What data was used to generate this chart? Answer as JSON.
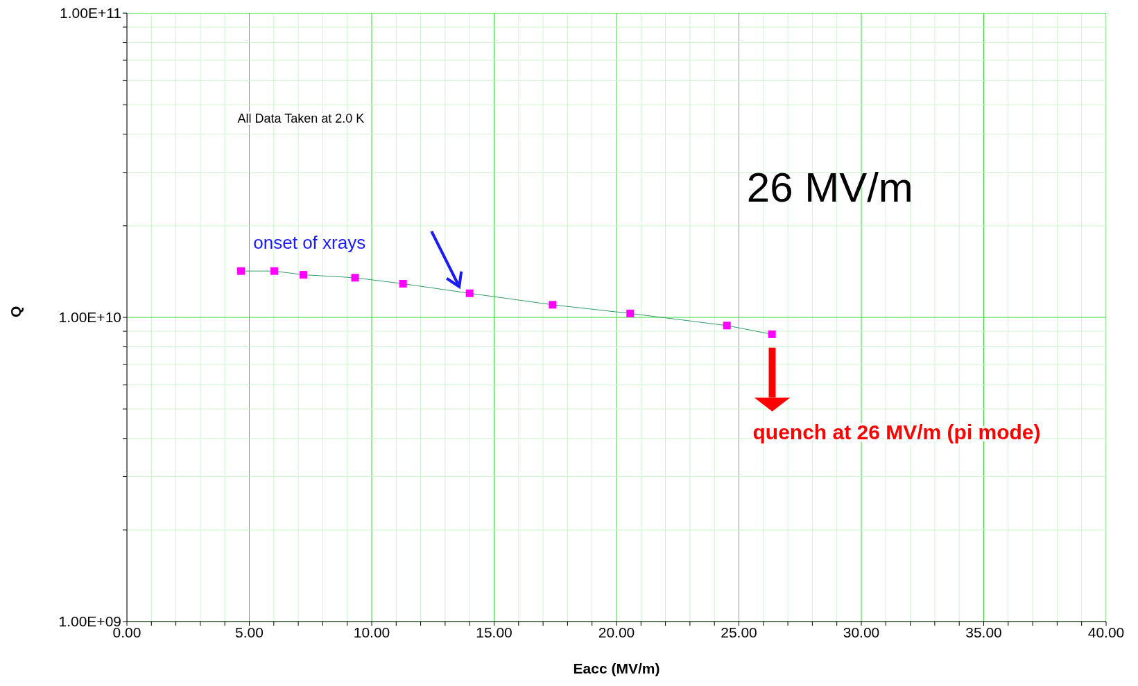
{
  "chart_data": {
    "type": "line",
    "xlabel": "Eacc (MV/m)",
    "ylabel": "Q",
    "log": "y",
    "grid": true,
    "marker": "square",
    "line_style": "solid",
    "xlim": [
      0,
      40
    ],
    "xticks": [
      {
        "value": 0,
        "label": "0.00"
      },
      {
        "value": 1,
        "label": null
      },
      {
        "value": 2,
        "label": null
      },
      {
        "value": 3,
        "label": null
      },
      {
        "value": 4,
        "label": null
      },
      {
        "value": 5,
        "label": "5.00"
      },
      {
        "value": 6,
        "label": null
      },
      {
        "value": 7,
        "label": null
      },
      {
        "value": 8,
        "label": null
      },
      {
        "value": 9,
        "label": null
      },
      {
        "value": 10,
        "label": "10.00"
      },
      {
        "value": 11,
        "label": null
      },
      {
        "value": 12,
        "label": null
      },
      {
        "value": 13,
        "label": null
      },
      {
        "value": 14,
        "label": null
      },
      {
        "value": 15,
        "label": "15.00"
      },
      {
        "value": 16,
        "label": null
      },
      {
        "value": 17,
        "label": null
      },
      {
        "value": 18,
        "label": null
      },
      {
        "value": 19,
        "label": null
      },
      {
        "value": 20,
        "label": "20.00"
      },
      {
        "value": 21,
        "label": null
      },
      {
        "value": 22,
        "label": null
      },
      {
        "value": 23,
        "label": null
      },
      {
        "value": 24,
        "label": null
      },
      {
        "value": 25,
        "label": "25.00"
      },
      {
        "value": 26,
        "label": null
      },
      {
        "value": 27,
        "label": null
      },
      {
        "value": 28,
        "label": null
      },
      {
        "value": 29,
        "label": null
      },
      {
        "value": 30,
        "label": "30.00"
      },
      {
        "value": 31,
        "label": null
      },
      {
        "value": 32,
        "label": null
      },
      {
        "value": 33,
        "label": null
      },
      {
        "value": 34,
        "label": null
      },
      {
        "value": 35,
        "label": "35.00"
      },
      {
        "value": 36,
        "label": null
      },
      {
        "value": 37,
        "label": null
      },
      {
        "value": 38,
        "label": null
      },
      {
        "value": 39,
        "label": null
      },
      {
        "value": 40,
        "label": "40.00"
      }
    ],
    "ylim": [
      1000000000,
      100000000000
    ],
    "yticks": [
      {
        "value": 1000000000,
        "label": "1.00E+09"
      },
      {
        "value": 2000000000,
        "label": null
      },
      {
        "value": 3000000000,
        "label": null
      },
      {
        "value": 4000000000,
        "label": null
      },
      {
        "value": 5000000000,
        "label": null
      },
      {
        "value": 6000000000,
        "label": null
      },
      {
        "value": 7000000000,
        "label": null
      },
      {
        "value": 8000000000,
        "label": null
      },
      {
        "value": 9000000000,
        "label": null
      },
      {
        "value": 10000000000,
        "label": "1.00E+10"
      },
      {
        "value": 20000000000,
        "label": null
      },
      {
        "value": 30000000000,
        "label": null
      },
      {
        "value": 40000000000,
        "label": null
      },
      {
        "value": 50000000000,
        "label": null
      },
      {
        "value": 60000000000,
        "label": null
      },
      {
        "value": 70000000000,
        "label": null
      },
      {
        "value": 80000000000,
        "label": null
      },
      {
        "value": 90000000000,
        "label": null
      },
      {
        "value": 100000000000,
        "label": "1.00E+11"
      }
    ],
    "series": [
      {
        "color": "#ff00ff",
        "x": [
          4.66,
          6.02,
          7.21,
          9.32,
          11.28,
          14.0,
          17.39,
          20.56,
          24.51,
          26.35
        ],
        "values": [
          14200000000,
          14200000000,
          13800000000,
          13500000000,
          12900000000,
          12000000000,
          11000000000,
          10300000000,
          9400000000,
          8800000000
        ]
      }
    ],
    "annotations": [
      "All Data Taken at 2.0 K",
      "26 MV/m",
      "onset of xrays",
      "quench at 26 MV/m (pi mode)"
    ]
  }
}
